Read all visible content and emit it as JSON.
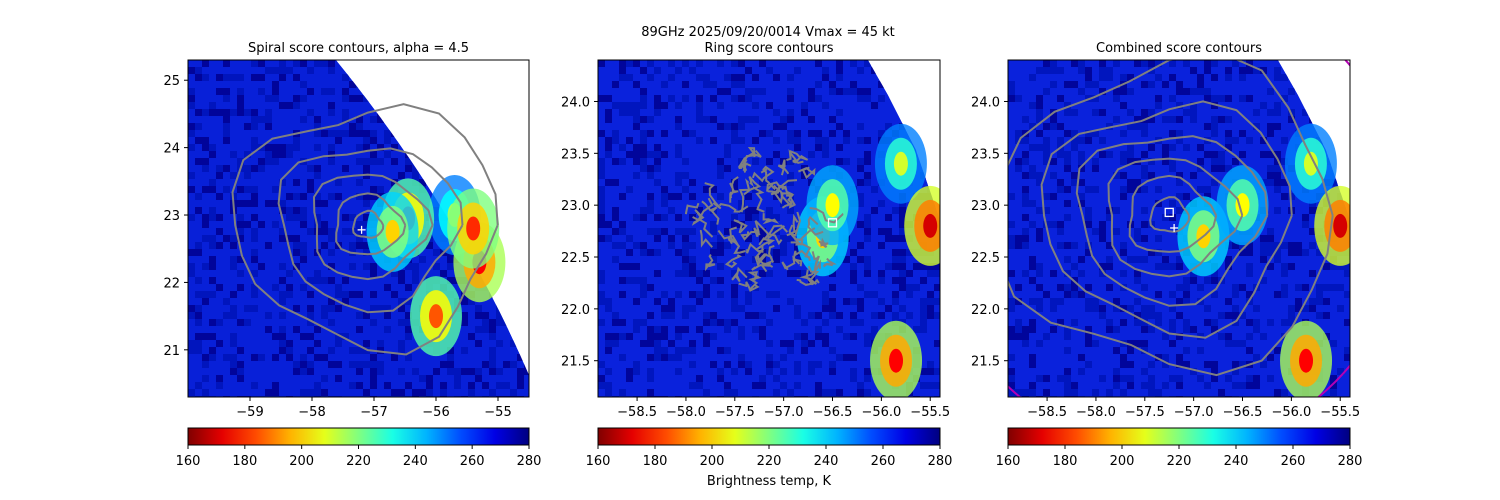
{
  "figure": {
    "suptitle_line1": "89GHz  2025/09/20/0014    Vmax = 45 kt",
    "colorbar_label": "Brightness temp, K"
  },
  "colors": {
    "background_cold": "#00008f",
    "contour": "#808080",
    "circle": "#b400b4",
    "marker": "#ffffff"
  },
  "chart_data": [
    {
      "type": "heatmap",
      "title": "Spiral score contours, alpha =  4.5",
      "xlabel": "",
      "ylabel": "",
      "xlim": [
        -60.0,
        -54.5
      ],
      "ylim": [
        20.3,
        25.3
      ],
      "xticks": [
        -59,
        -58,
        -57,
        -56,
        -55
      ],
      "yticks": [
        21,
        22,
        23,
        24,
        25
      ],
      "colorbar": {
        "min": 160,
        "max": 280,
        "ticks": [
          160,
          180,
          200,
          220,
          240,
          260,
          280
        ],
        "colormap": "jet_r"
      },
      "contour_centers": [
        {
          "x": -57.1,
          "y": 22.85
        }
      ],
      "markers": [
        {
          "shape": "plus",
          "x": -57.2,
          "y": 22.78
        }
      ],
      "warm_features": [
        {
          "x": -55.7,
          "y": 23.0,
          "tb": 215
        },
        {
          "x": -55.3,
          "y": 22.3,
          "tb": 175
        },
        {
          "x": -55.4,
          "y": 22.8,
          "tb": 180
        },
        {
          "x": -56.45,
          "y": 22.95,
          "tb": 185
        },
        {
          "x": -56.7,
          "y": 22.75,
          "tb": 200
        },
        {
          "x": -56.0,
          "y": 21.5,
          "tb": 185
        }
      ]
    },
    {
      "type": "heatmap",
      "title": "Ring score contours",
      "xlabel": "",
      "ylabel": "",
      "xlim": [
        -58.9,
        -55.4
      ],
      "ylim": [
        21.15,
        24.4
      ],
      "xticks": [
        -58.5,
        -58.0,
        -57.5,
        -57.0,
        -56.5,
        -56.0,
        -55.5
      ],
      "yticks": [
        21.5,
        22.0,
        22.5,
        23.0,
        23.5,
        24.0
      ],
      "colorbar": {
        "min": 160,
        "max": 280,
        "ticks": [
          160,
          180,
          200,
          220,
          240,
          260,
          280
        ],
        "colormap": "jet_r"
      },
      "ring_region": {
        "x": -57.2,
        "y": 22.8,
        "radius_deg": 0.6
      },
      "markers": [
        {
          "shape": "square",
          "x": -56.5,
          "y": 22.83
        }
      ],
      "warm_features": [
        {
          "x": -55.8,
          "y": 23.4,
          "tb": 210
        },
        {
          "x": -55.5,
          "y": 22.8,
          "tb": 170
        },
        {
          "x": -55.85,
          "y": 21.5,
          "tb": 175
        },
        {
          "x": -56.6,
          "y": 22.7,
          "tb": 200
        },
        {
          "x": -56.5,
          "y": 23.0,
          "tb": 205
        }
      ]
    },
    {
      "type": "heatmap",
      "title": "Combined score contours",
      "xlabel": "",
      "ylabel": "",
      "xlim": [
        -58.9,
        -55.4
      ],
      "ylim": [
        21.15,
        24.4
      ],
      "xticks": [
        -58.5,
        -58.0,
        -57.5,
        -57.0,
        -56.5,
        -56.0,
        -55.5
      ],
      "yticks": [
        21.5,
        22.0,
        22.5,
        23.0,
        23.5,
        24.0
      ],
      "colorbar": {
        "min": 160,
        "max": 280,
        "ticks": [
          160,
          180,
          200,
          220,
          240,
          260,
          280
        ],
        "colormap": "jet_r"
      },
      "contour_centers": [
        {
          "x": -57.25,
          "y": 22.9
        }
      ],
      "markers": [
        {
          "shape": "square",
          "x": -57.25,
          "y": 22.93
        },
        {
          "shape": "plus",
          "x": -57.2,
          "y": 22.78
        }
      ],
      "warm_features": [
        {
          "x": -55.8,
          "y": 23.4,
          "tb": 210
        },
        {
          "x": -55.5,
          "y": 22.8,
          "tb": 170
        },
        {
          "x": -55.85,
          "y": 21.5,
          "tb": 175
        },
        {
          "x": -56.9,
          "y": 22.7,
          "tb": 200
        },
        {
          "x": -56.5,
          "y": 23.0,
          "tb": 205
        }
      ]
    }
  ]
}
